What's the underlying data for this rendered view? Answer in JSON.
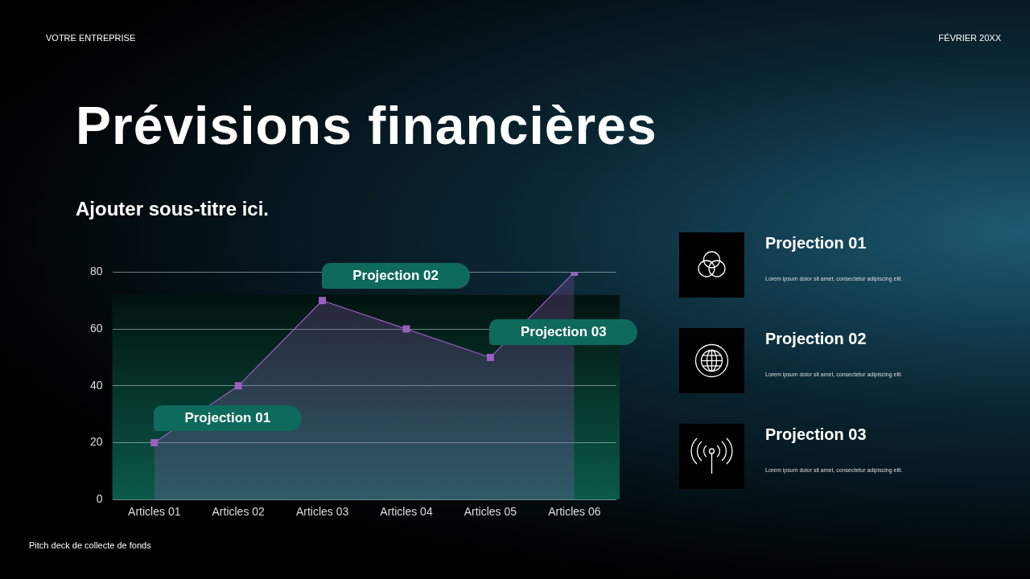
{
  "chart_data": {
    "type": "area",
    "title": "Prévisions financières",
    "subtitle": "Ajouter sous-titre ici.",
    "categories": [
      "Articles 01",
      "Articles 02",
      "Articles 03",
      "Articles 04",
      "Articles 05",
      "Articles 06"
    ],
    "series": [
      {
        "color": "#9b5fc0",
        "values": [
          20,
          40,
          70,
          60,
          50,
          80
        ]
      }
    ],
    "bands": [
      {
        "axis": "y",
        "from": 0,
        "to": 72,
        "color": "#0b5a4a"
      }
    ],
    "ylim": [
      0,
      80
    ],
    "yticks": [
      0,
      20,
      40,
      60,
      80
    ],
    "grid": "y",
    "legend": false,
    "marker": "square",
    "annotations": [
      "VOTRE ENTREPRISE",
      "FÉVRIER 20XX",
      "Pitch deck de collecte de fonds",
      "Projection 01",
      "Lorem ipsum dolor sit amet, consectetur adipiscing elit.",
      "Projection 02",
      "Lorem ipsum dolor sit amet, consectetur adipiscing elit.",
      "Projection 03",
      "Lorem ipsum dolor sit amet, consectetur adipiscing elit.",
      {
        "text": "Projection 01",
        "x": "Articles 01",
        "y": 20
      },
      {
        "text": "Projection 02",
        "x": "Articles 03",
        "y": 70
      },
      {
        "text": "Projection 03",
        "x": "Articles 05",
        "y": 50
      }
    ]
  }
}
